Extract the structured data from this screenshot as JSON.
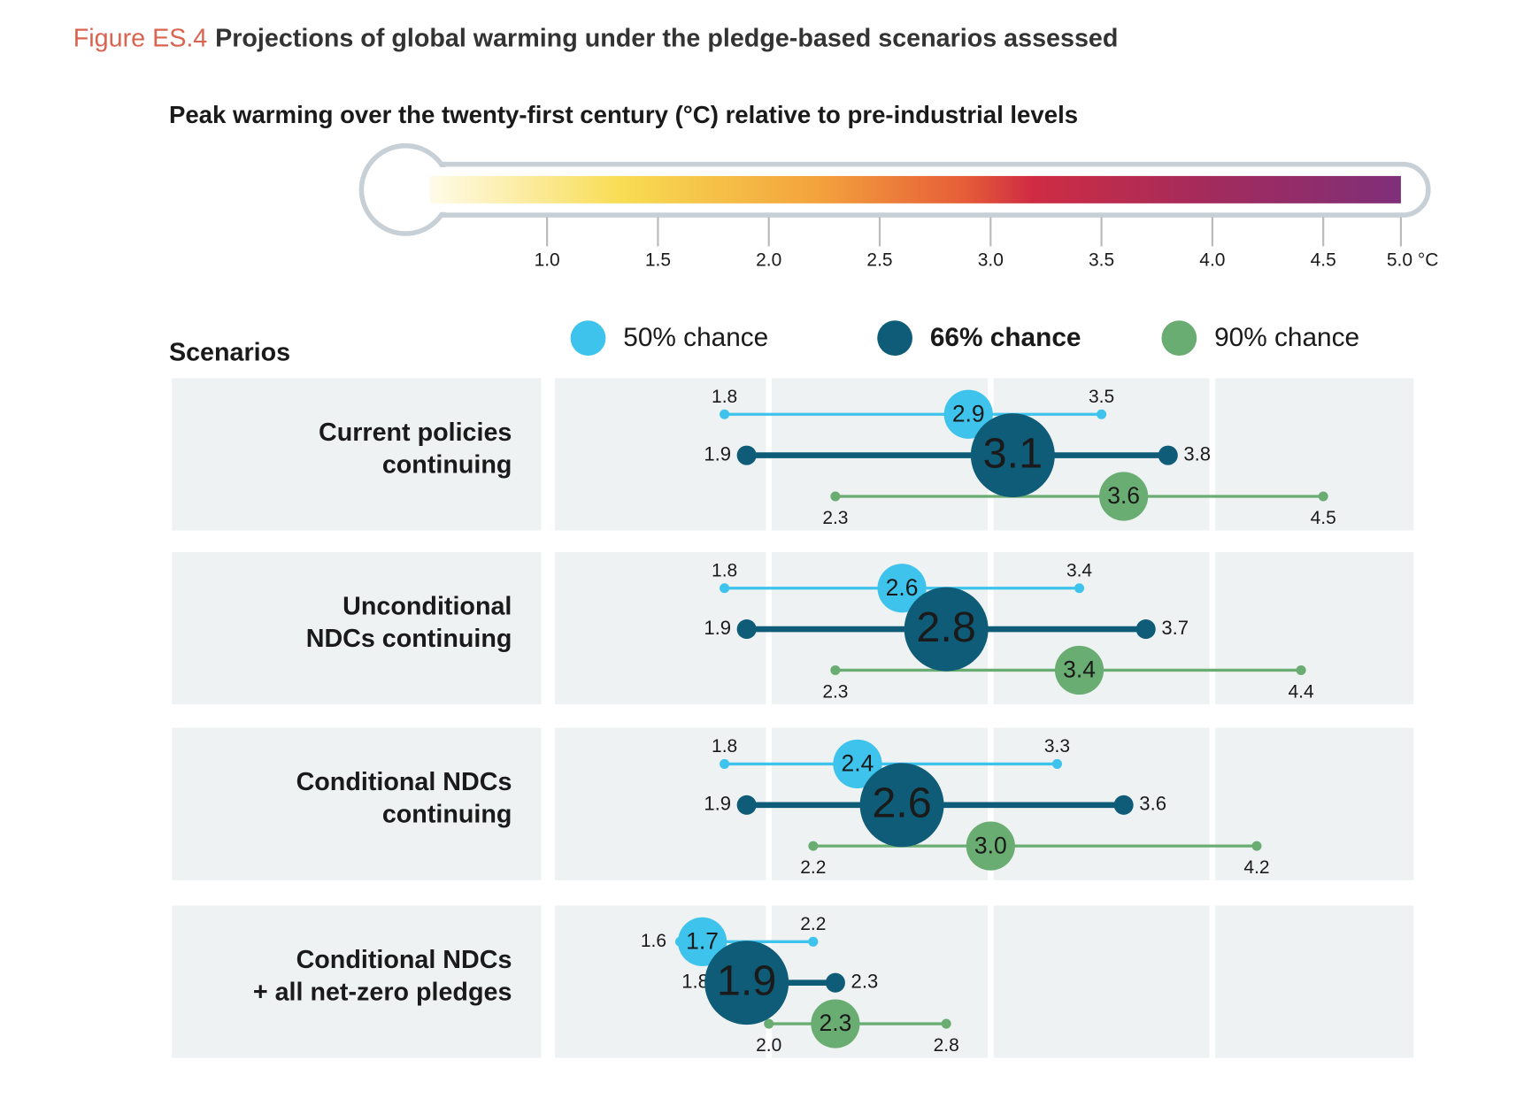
{
  "chart_data": {
    "type": "range",
    "figure_label": "Figure ES.4",
    "title": "Projections of global warming under the pledge-based scenarios assessed",
    "subtitle": "Peak warming over the twenty-first century (°C) relative to pre-industrial levels",
    "categories_title": "Scenarios",
    "xlim": [
      1,
      5
    ],
    "xticks": [
      {
        "value": 1,
        "label": "1.0"
      },
      1.5,
      {
        "value": 2,
        "label": "2.0"
      },
      2.5,
      {
        "value": 3,
        "label": "3.0"
      },
      3.5,
      {
        "value": 4,
        "label": "4.0"
      },
      4.5,
      {
        "value": 5,
        "label": "5.0 °C"
      }
    ],
    "categories": [
      [
        "Current policies",
        "continuing"
      ],
      [
        "Unconditional",
        "NDCs continuing"
      ],
      [
        "Conditional NDCs",
        "continuing"
      ],
      [
        "Conditional NDCs",
        "+ all net-zero pledges"
      ]
    ],
    "series": [
      {
        "name": "50% chance",
        "color": "#3ec3ec",
        "values": [
          2.9,
          2.6,
          2.4,
          1.7
        ],
        "low": [
          1.8,
          1.8,
          1.8,
          1.6
        ],
        "high": [
          3.5,
          3.4,
          3.3,
          2.2
        ]
      },
      {
        "name": "66% chance",
        "color": "#0f5c78",
        "values": [
          3.1,
          2.8,
          2.6,
          1.9
        ],
        "low": [
          1.9,
          1.9,
          1.9,
          1.8
        ],
        "high": [
          3.8,
          3.7,
          3.6,
          2.3
        ]
      },
      {
        "name": "90% chance",
        "color": "#6aad72",
        "values": [
          3.6,
          3.4,
          3,
          2.3
        ],
        "value_labels": [
          "3.6",
          "3.4",
          "3.0",
          "2.3"
        ],
        "low": [
          2.3,
          2.3,
          2.2,
          2
        ],
        "low_labels": [
          "2.3",
          "2.3",
          "2.2",
          "2.0"
        ],
        "high": [
          4.5,
          4.4,
          4.2,
          2.8
        ]
      }
    ]
  }
}
